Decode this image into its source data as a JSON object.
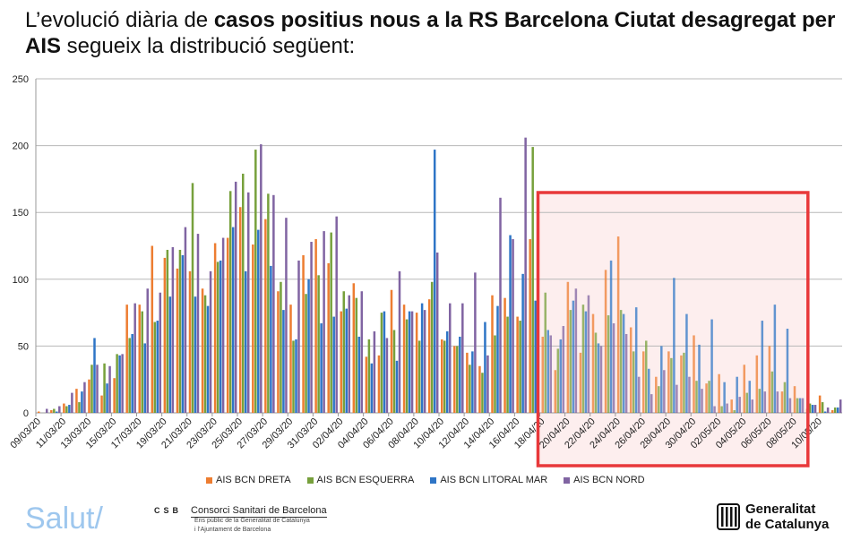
{
  "title": {
    "part1": "L’evolució diària de ",
    "bold": "casos positius nous a la RS Barcelona Ciutat desagregat per AIS",
    "part2": " segueix la distribució següent:"
  },
  "chart_data": {
    "type": "bar",
    "ylim": [
      0,
      250
    ],
    "yticks": [
      0,
      50,
      100,
      150,
      200,
      250
    ],
    "grid": true,
    "legend_placement": "bottom",
    "highlight_range": [
      "18/04/20",
      "08/05/20"
    ],
    "highlight_color": "#e8383a",
    "categories": [
      "09/03/20",
      "10/03/20",
      "11/03/20",
      "12/03/20",
      "13/03/20",
      "14/03/20",
      "15/03/20",
      "16/03/20",
      "17/03/20",
      "18/03/20",
      "19/03/20",
      "20/03/20",
      "21/03/20",
      "22/03/20",
      "23/03/20",
      "24/03/20",
      "25/03/20",
      "26/03/20",
      "27/03/20",
      "28/03/20",
      "29/03/20",
      "30/03/20",
      "31/03/20",
      "01/04/20",
      "02/04/20",
      "03/04/20",
      "04/04/20",
      "05/04/20",
      "06/04/20",
      "07/04/20",
      "08/04/20",
      "09/04/20",
      "10/04/20",
      "11/04/20",
      "12/04/20",
      "13/04/20",
      "14/04/20",
      "15/04/20",
      "16/04/20",
      "17/04/20",
      "18/04/20",
      "19/04/20",
      "20/04/20",
      "21/04/20",
      "22/04/20",
      "23/04/20",
      "24/04/20",
      "25/04/20",
      "26/04/20",
      "27/04/20",
      "28/04/20",
      "29/04/20",
      "30/04/20",
      "01/05/20",
      "02/05/20",
      "03/05/20",
      "04/05/20",
      "05/05/20",
      "06/05/20",
      "07/05/20",
      "08/05/20",
      "09/05/20",
      "10/05/20",
      "11/05/20"
    ],
    "series": [
      {
        "name": "AIS BCN DRETA",
        "color": "#ED7D31",
        "values": [
          1,
          2,
          7,
          18,
          25,
          13,
          26,
          81,
          81,
          125,
          116,
          108,
          106,
          93,
          127,
          131,
          154,
          126,
          145,
          91,
          81,
          118,
          130,
          112,
          76,
          97,
          42,
          43,
          92,
          81,
          75,
          85,
          55,
          50,
          45,
          35,
          88,
          86,
          72,
          130,
          57,
          32,
          98,
          45,
          74,
          107,
          132,
          64,
          46,
          27,
          46,
          43,
          58,
          22,
          29,
          10,
          36,
          43,
          50,
          16,
          20,
          3,
          13,
          2
        ]
      },
      {
        "name": "AIS BCN ESQUERRA",
        "color": "#77A03C",
        "values": [
          0,
          3,
          5,
          8,
          36,
          37,
          44,
          56,
          76,
          68,
          122,
          122,
          172,
          88,
          113,
          166,
          179,
          197,
          164,
          98,
          54,
          89,
          103,
          135,
          91,
          86,
          55,
          75,
          62,
          70,
          54,
          98,
          54,
          50,
          36,
          30,
          58,
          72,
          69,
          199,
          90,
          48,
          77,
          81,
          60,
          73,
          77,
          46,
          54,
          20,
          41,
          45,
          24,
          24,
          5,
          2,
          15,
          18,
          31,
          23,
          11,
          7,
          8,
          4
        ]
      },
      {
        "name": "AIS BCN LITORAL MAR",
        "color": "#2E75C6",
        "values": [
          0,
          1,
          6,
          16,
          56,
          22,
          43,
          59,
          52,
          69,
          87,
          118,
          87,
          80,
          114,
          139,
          106,
          137,
          110,
          77,
          55,
          100,
          67,
          72,
          78,
          57,
          37,
          76,
          39,
          76,
          82,
          197,
          61,
          57,
          46,
          68,
          80,
          133,
          104,
          84,
          62,
          55,
          84,
          76,
          52,
          114,
          74,
          79,
          33,
          50,
          101,
          74,
          51,
          70,
          23,
          27,
          24,
          69,
          81,
          63,
          11,
          6,
          1,
          4
        ]
      },
      {
        "name": "AIS BCN NORD",
        "color": "#8064A2",
        "values": [
          3,
          5,
          15,
          23,
          36,
          35,
          44,
          82,
          93,
          90,
          124,
          139,
          134,
          106,
          131,
          173,
          165,
          201,
          163,
          146,
          114,
          128,
          136,
          147,
          88,
          91,
          61,
          56,
          106,
          76,
          77,
          120,
          82,
          82,
          105,
          43,
          161,
          130,
          206,
          55,
          58,
          65,
          93,
          88,
          50,
          67,
          59,
          27,
          14,
          32,
          21,
          27,
          18,
          5,
          7,
          12,
          10,
          16,
          16,
          11,
          11,
          6,
          4,
          10
        ]
      }
    ]
  },
  "footer": {
    "salut": "Salut/",
    "csb_abbr": "CSB",
    "csb_name": "Consorci Sanitari de Barcelona",
    "csb_sub1": "Ens públic de la Generalitat de Catalunya",
    "csb_sub2": "i l’Ajuntament de Barcelona",
    "gen_line1": "Generalitat",
    "gen_line2": "de Catalunya"
  }
}
